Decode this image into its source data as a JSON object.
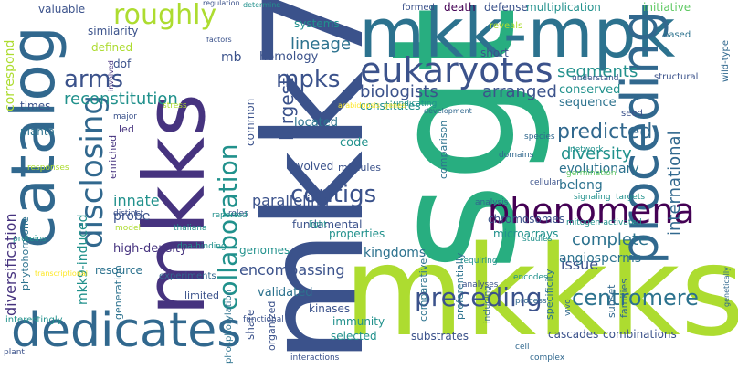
{
  "palette": {
    "dark_purple": "#440154",
    "indigo": "#46337f",
    "blue": "#3b528b",
    "steel": "#31688e",
    "teal_blue": "#2c728e",
    "teal": "#21918c",
    "sea_green": "#28ae80",
    "green": "#5ec962",
    "lime": "#addc30",
    "yellow": "#fde725"
  },
  "words": {
    "sgt1": "sgt1",
    "mkk7": "mkk7",
    "mkkks": "mkkks",
    "mkk_mpk": "mkk-mpk",
    "mkks": "mkks",
    "catalog": "catalog",
    "dedicates": "dedicates",
    "proceding": "proceding",
    "eukaryotes": "eukaryotes",
    "phenomena": "phenomena",
    "collaboration": "collaboration",
    "disclosing": "disclosing",
    "roughly": "roughly",
    "contigs": "contigs",
    "preceding": "preceding",
    "centromere": "centromere",
    "lineage": "lineage",
    "arms": "arms",
    "mpks": "mpks",
    "segments": "segments",
    "reconstitution": "reconstitution",
    "biologists": "biologists",
    "arranged": "arranged",
    "predicted": "predicted",
    "diversity": "diversity",
    "international": "international",
    "complete": "complete",
    "kingdoms": "kingdoms",
    "encompassing": "encompassing",
    "innate": "innate",
    "paralleling": "paralleling",
    "fundamental": "fundamental",
    "largest": "largest",
    "issue": "issue",
    "probe": "probe",
    "diversification": "diversification",
    "correspond": "correspond",
    "mkk9_induced": "mkk9-induced",
    "high_density": "high-density",
    "chromosomes": "chromosomes",
    "evolutionary": "evolutionary",
    "belong": "belong",
    "angiosperms": "angiosperms",
    "conserved": "conserved",
    "sequence": "sequence",
    "valuable": "valuable",
    "similarity": "similarity",
    "defined": "defined",
    "dof": "dof",
    "mb": "mb",
    "homology": "homology",
    "systems": "systems",
    "multiplication": "multiplication",
    "defense": "defense",
    "initiative": "initiative",
    "short": "short",
    "located": "located",
    "code": "code",
    "constitutes": "constitutes",
    "modules": "modules",
    "evolved": "evolved",
    "common": "common",
    "share": "share",
    "validated": "validated",
    "kinases": "kinases",
    "immunity": "immunity",
    "selected": "selected",
    "substrates": "substrates",
    "cascades": "cascades",
    "combinations": "combinations",
    "comparative": "comparative",
    "subset": "subset",
    "families": "families",
    "specificity": "specificity",
    "preferentially": "preferentially",
    "comparison": "comparison",
    "microarrays": "microarrays",
    "properties": "properties",
    "organized": "organized",
    "resource": "resource",
    "generation": "generation",
    "limited": "limited",
    "experiments": "experiments",
    "phytohormone": "phytohormone",
    "times": "times",
    "planta": "planta",
    "led": "led",
    "genomes": "genomes",
    "enriched": "enriched",
    "death": "death",
    "formed": "formed",
    "reveals": "reveals",
    "based": "based",
    "wild_type": "wild-type",
    "structural": "structural",
    "understand": "understand",
    "seed": "seed",
    "network": "network",
    "species": "species",
    "domains": "domains",
    "germination": "germination",
    "cellular": "cellular",
    "signaling": "signaling",
    "targets": "targets",
    "mitogen_activated": "mitogen-activated",
    "analysis": "analysis",
    "studies": "studies",
    "encodes": "encodes",
    "requiring": "requiring",
    "analyses": "analyses",
    "including": "including",
    "process": "process",
    "vivo": "vivo",
    "complex": "complex",
    "cell": "cell",
    "interactions": "interactions",
    "phosphorylation": "phosphorylation",
    "interestingly": "interestingly",
    "plant": "plant",
    "transcriptional": "transcriptional",
    "proteins": "proteins",
    "responses": "responses",
    "model": "model",
    "thaliana": "thaliana",
    "distinct": "distinct",
    "dna_binding": "dna-binding",
    "roles": "roles",
    "reported": "reported",
    "functional": "functional",
    "light": "light",
    "major": "major",
    "stress": "stress",
    "involved": "involved",
    "regulation": "regulation",
    "factors": "factors",
    "determine": "determine",
    "development": "development",
    "indicating": "indicating",
    "genes": "genes",
    "arabidopsis": "arabidopsis",
    "genetically": "genetically"
  }
}
